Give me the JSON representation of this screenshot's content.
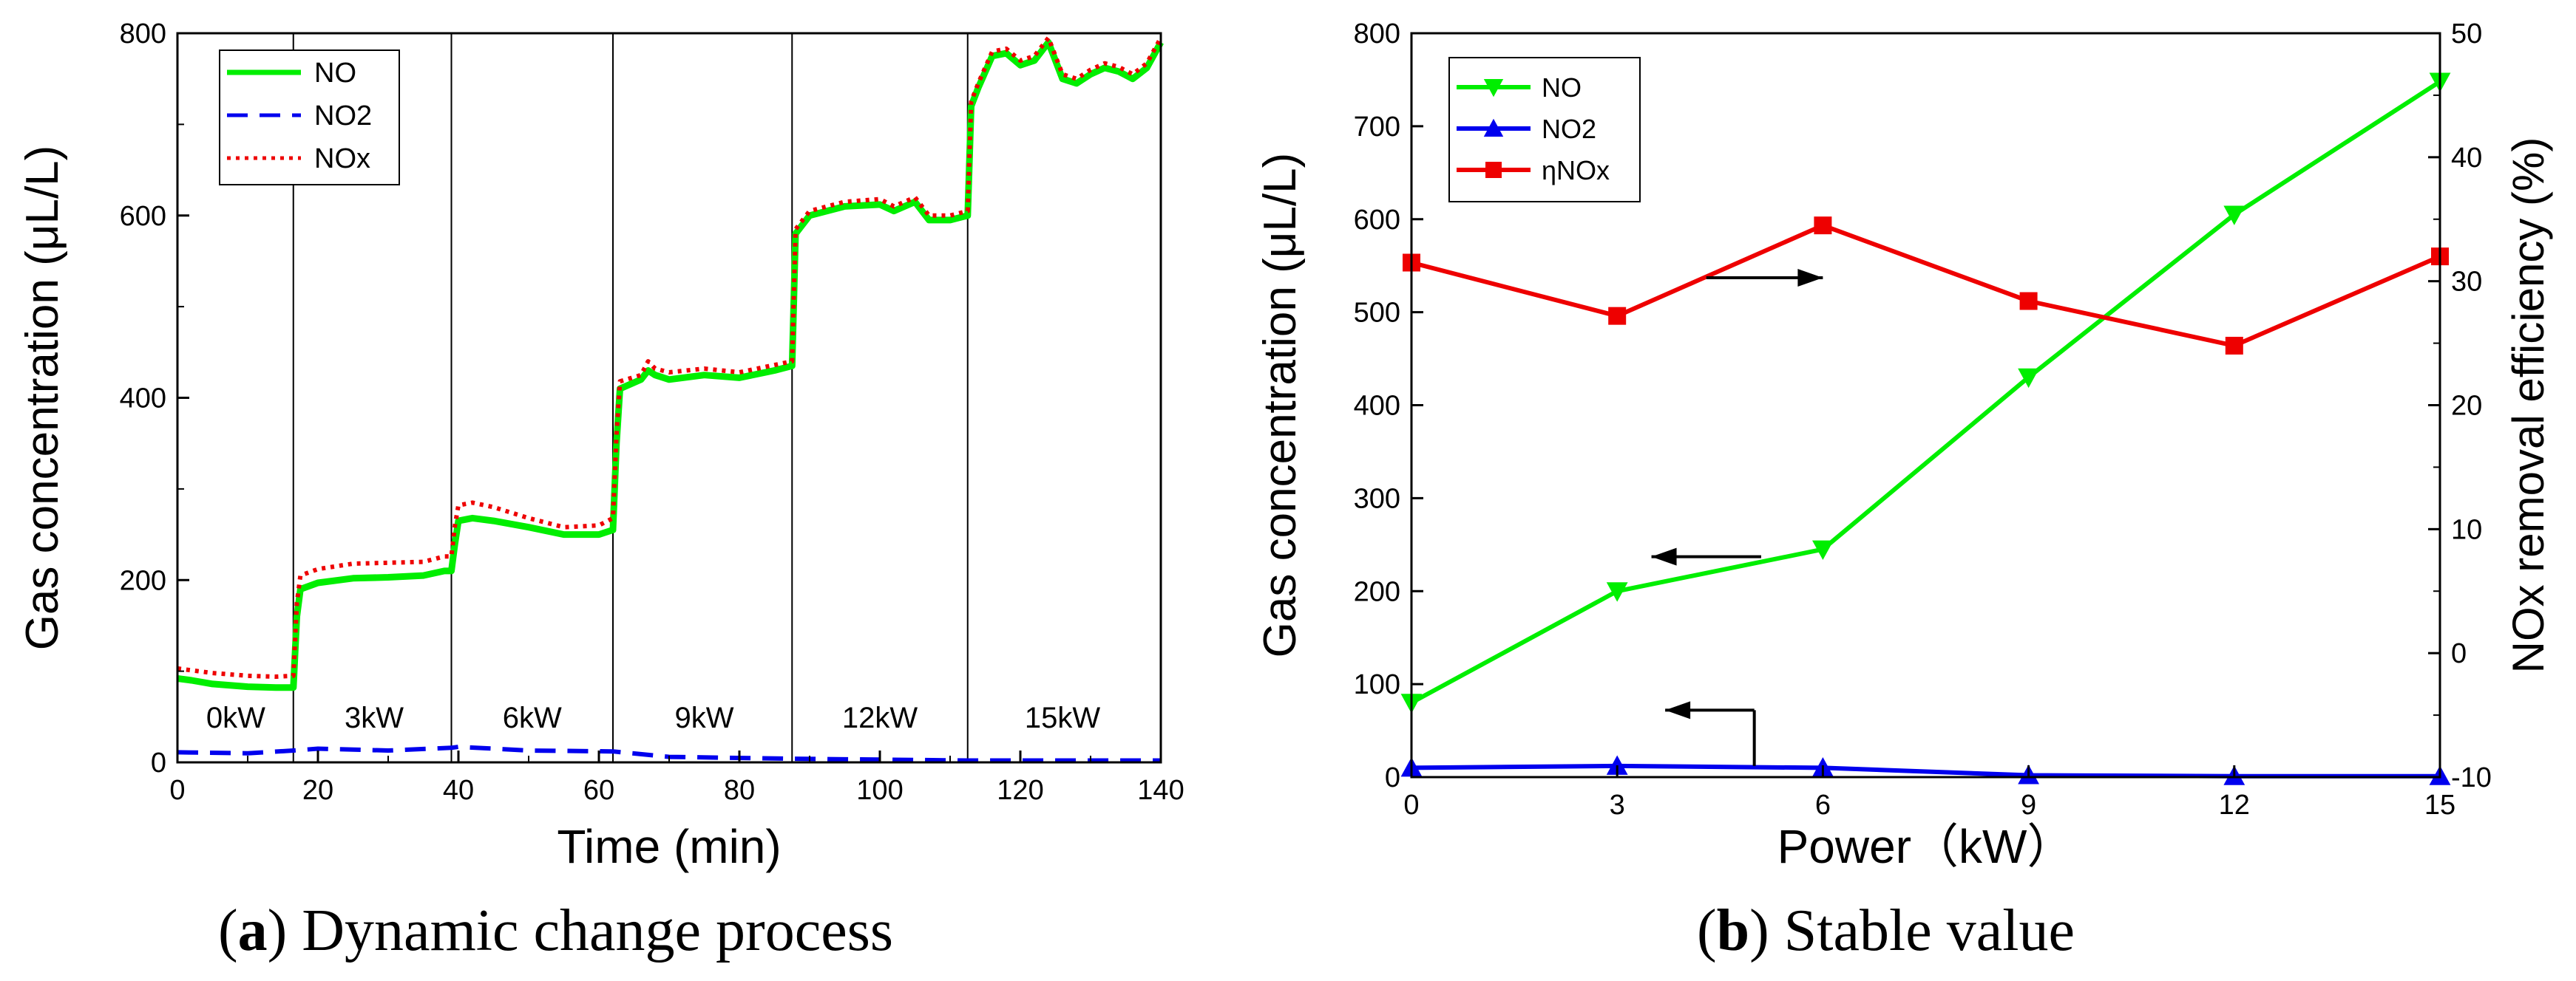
{
  "chart_data": [
    {
      "type": "line",
      "caption_letter": "a",
      "caption_text": "Dynamic change process",
      "xlabel": "Time (min)",
      "ylabel": "Gas concentration (μL/L)",
      "xlim": [
        0,
        140
      ],
      "ylim": [
        0,
        800
      ],
      "xticks": [
        0,
        20,
        40,
        60,
        80,
        100,
        120,
        140
      ],
      "yticks": [
        0,
        200,
        400,
        600,
        800
      ],
      "grid": false,
      "legend_position": "top-left",
      "stage_dividers": [
        16.5,
        39,
        62,
        87.5,
        112.5
      ],
      "stage_labels": [
        {
          "label": "0kW",
          "x": 8.3
        },
        {
          "label": "3kW",
          "x": 28
        },
        {
          "label": "6kW",
          "x": 50.5
        },
        {
          "label": "9kW",
          "x": 75
        },
        {
          "label": "12kW",
          "x": 100
        },
        {
          "label": "15kW",
          "x": 126
        }
      ],
      "series": [
        {
          "name": "NO",
          "color": "#00ee00",
          "dash": "solid",
          "x": [
            0,
            2,
            5,
            10,
            14,
            16.5,
            17,
            17.5,
            20,
            25,
            30,
            35,
            38,
            39,
            39.5,
            40,
            42,
            45,
            50,
            55,
            60,
            62,
            62.5,
            63,
            66,
            67,
            68,
            70,
            75,
            80,
            85,
            87.5,
            88,
            90,
            95,
            100,
            102,
            105,
            107,
            110,
            112.5,
            113,
            114,
            116,
            118,
            120,
            122,
            124,
            126,
            128,
            130,
            132,
            134,
            136,
            138,
            140
          ],
          "y": [
            92,
            90,
            86,
            83,
            82,
            82,
            160,
            190,
            197,
            202,
            203,
            205,
            210,
            210,
            240,
            265,
            268,
            265,
            258,
            250,
            250,
            255,
            350,
            410,
            420,
            430,
            425,
            420,
            425,
            422,
            430,
            435,
            580,
            600,
            610,
            612,
            605,
            615,
            595,
            595,
            600,
            720,
            740,
            775,
            778,
            765,
            770,
            790,
            750,
            745,
            755,
            762,
            758,
            750,
            762,
            790
          ]
        },
        {
          "name": "NO2",
          "color": "#0000ee",
          "dash": "dashed",
          "x": [
            0,
            10,
            16.5,
            20,
            30,
            39,
            40,
            50,
            62,
            70,
            87.5,
            100,
            112.5,
            120,
            140
          ],
          "y": [
            11,
            10,
            13,
            15,
            13,
            16,
            17,
            13,
            12,
            6,
            4,
            3,
            2,
            2,
            2
          ]
        },
        {
          "name": "NOx",
          "color": "#ee0000",
          "dash": "dotted",
          "x": [
            0,
            2,
            5,
            10,
            14,
            16.5,
            17,
            17.5,
            20,
            25,
            30,
            35,
            38,
            39,
            39.5,
            40,
            42,
            45,
            50,
            55,
            60,
            62,
            62.5,
            63,
            66,
            67,
            68,
            70,
            75,
            80,
            85,
            87.5,
            88,
            90,
            95,
            100,
            102,
            105,
            107,
            110,
            112.5,
            113,
            114,
            116,
            118,
            120,
            122,
            124,
            126,
            128,
            130,
            132,
            134,
            136,
            138,
            140
          ],
          "y": [
            103,
            101,
            98,
            95,
            94,
            95,
            175,
            205,
            212,
            218,
            219,
            220,
            226,
            226,
            260,
            282,
            285,
            280,
            268,
            258,
            260,
            268,
            360,
            418,
            425,
            440,
            432,
            428,
            432,
            428,
            436,
            440,
            585,
            605,
            615,
            618,
            610,
            620,
            600,
            600,
            605,
            725,
            745,
            780,
            783,
            770,
            775,
            795,
            755,
            750,
            760,
            767,
            763,
            755,
            767,
            795
          ]
        }
      ]
    },
    {
      "type": "line",
      "caption_letter": "b",
      "caption_text": "Stable value",
      "xlabel": "Power（kW）",
      "ylabel": "Gas concentration (μL/L)",
      "y2label": "NOx  removal efficiency (%)",
      "xlim": [
        0,
        15
      ],
      "ylim": [
        0,
        800
      ],
      "y2lim": [
        -10,
        50
      ],
      "xticks": [
        0,
        3,
        6,
        9,
        12,
        15
      ],
      "yticks": [
        0,
        100,
        200,
        300,
        400,
        500,
        600,
        700,
        800
      ],
      "y2ticks": [
        -10,
        0,
        10,
        20,
        30,
        40,
        50
      ],
      "grid": false,
      "legend_position": "top-left",
      "categories": [
        0,
        3,
        6,
        9,
        12,
        15
      ],
      "series": [
        {
          "name": "NO",
          "color": "#00ee00",
          "marker": "triangle-down",
          "axis": "left",
          "values": [
            80,
            200,
            245,
            430,
            605,
            748
          ]
        },
        {
          "name": "NO2",
          "color": "#0000ee",
          "marker": "triangle-up",
          "axis": "left",
          "values": [
            10,
            12,
            10,
            2,
            1,
            1
          ]
        },
        {
          "name": "ηNOx",
          "color": "#ee0000",
          "marker": "square",
          "axis": "right",
          "values": [
            31.5,
            27.2,
            34.5,
            28.4,
            24.8,
            32
          ]
        }
      ],
      "arrows": [
        {
          "series": "ηNOx",
          "direction": "right",
          "x_from": 4.3,
          "x_to": 6.0,
          "y": 537
        },
        {
          "series": "NO",
          "direction": "left",
          "x_from": 5.1,
          "x_to": 3.5,
          "y": 237
        },
        {
          "series": "NO2",
          "direction": "left",
          "x_from": 5.0,
          "x_to": 3.7,
          "y": 72
        }
      ]
    }
  ]
}
